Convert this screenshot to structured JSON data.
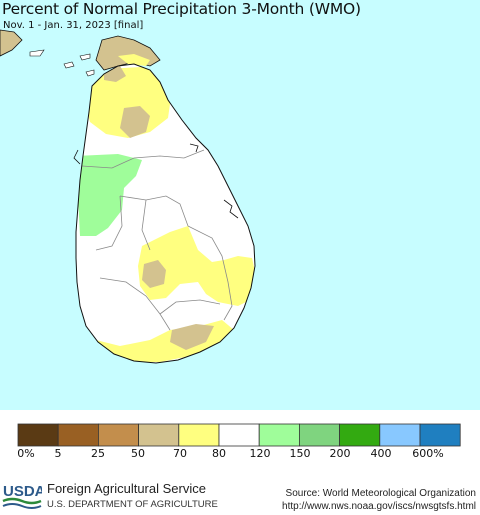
{
  "header": {
    "title": "Percent of Normal Precipitation 3-Month (WMO)",
    "subtitle": "Nov. 1 - Jan. 31, 2023 [final]"
  },
  "map": {
    "colors": {
      "ocean": "#c7fdff",
      "land_normal": "#ffffff",
      "dry_70_80": "#ffff80",
      "dry_50_70": "#d3c28f",
      "wet_120_150": "#9ffd9a",
      "border": "#111111",
      "province_border": "#8a8a8a"
    }
  },
  "legend": {
    "colors": [
      "#5a3a14",
      "#996023",
      "#c38e4c",
      "#d3c28f",
      "#ffff80",
      "#ffffff",
      "#9ffd9a",
      "#7fd47f",
      "#33aa11",
      "#88c8ff",
      "#1f7fc0"
    ],
    "labels": [
      "0%",
      "5",
      "25",
      "50",
      "70",
      "80",
      "120",
      "150",
      "200",
      "400",
      "600%"
    ]
  },
  "footer": {
    "logo_text": "USDA",
    "agency": "Foreign Agricultural Service",
    "department": "U.S. DEPARTMENT OF AGRICULTURE",
    "source": "Source: World Meteorological Organization",
    "url": "http://www.nws.noaa.gov/iscs/nwsgtsfs.html"
  }
}
